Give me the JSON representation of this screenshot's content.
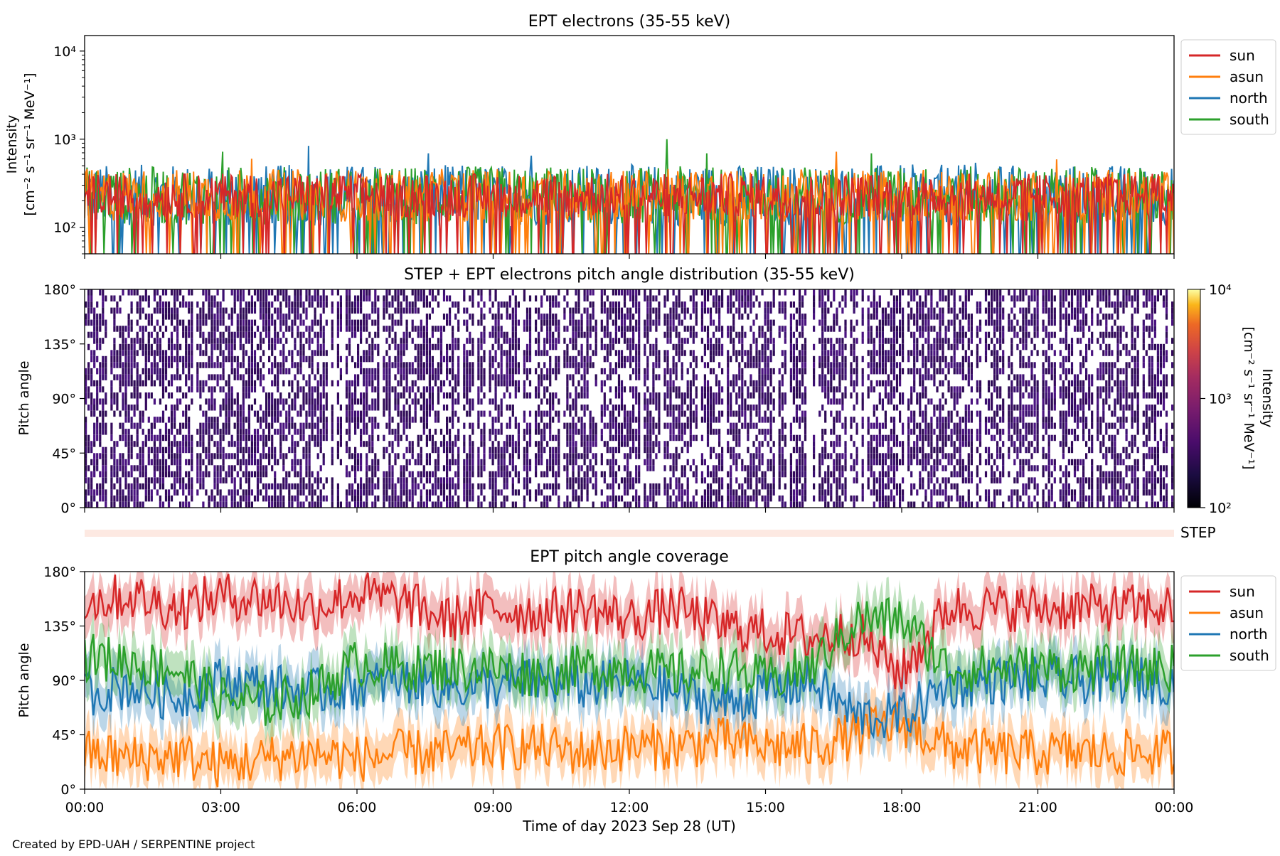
{
  "colors": {
    "sun": "#d62728",
    "asun": "#ff7f0e",
    "north": "#1f77b4",
    "south": "#2ca02c",
    "pitch_fill": "#3b0f70",
    "step_strip": "#fde9e2"
  },
  "footer": "Created by EPD-UAH / SERPENTINE project",
  "chart_data": [
    {
      "type": "line",
      "title": "EPT electrons (35-55 keV)",
      "ylabel_line1": "Intensity",
      "ylabel_line2": "[cm⁻² s⁻¹ sr⁻¹ MeV⁻¹]",
      "yscale": "log",
      "ylim": [
        50,
        15000
      ],
      "yticks": [
        {
          "value": 100,
          "label": "10²"
        },
        {
          "value": 1000,
          "label": "10³"
        },
        {
          "value": 10000,
          "label": "10⁴"
        }
      ],
      "xlim": [
        0,
        24
      ],
      "legend_position": "outside-right",
      "series": [
        {
          "name": "north",
          "color_key": "north",
          "typical": 230,
          "spread": 0.35,
          "peak": [
            [
              "04:56",
              840
            ],
            [
              "07:35",
              690
            ],
            [
              "09:50",
              650
            ],
            [
              "19:37",
              540
            ]
          ]
        },
        {
          "name": "south",
          "color_key": "south",
          "typical": 230,
          "spread": 0.33,
          "peak": [
            [
              "12:50",
              1000
            ],
            [
              "03:02",
              720
            ],
            [
              "17:20",
              690
            ],
            [
              "13:42",
              690
            ]
          ]
        },
        {
          "name": "asun",
          "color_key": "asun",
          "typical": 230,
          "spread": 0.3,
          "peak": [
            [
              "16:34",
              720
            ],
            [
              "21:25",
              590
            ],
            [
              "03:40",
              600
            ]
          ]
        },
        {
          "name": "sun",
          "color_key": "sun",
          "typical": 230,
          "spread": 0.25,
          "peak": []
        }
      ],
      "legend": [
        "sun",
        "asun",
        "north",
        "south"
      ]
    },
    {
      "type": "heatmap",
      "title": "STEP + EPT electrons pitch angle distribution (35-55 keV)",
      "ylabel": "Pitch angle",
      "ylim": [
        0,
        180
      ],
      "yticks": [
        {
          "value": 0,
          "label": "0°"
        },
        {
          "value": 45,
          "label": "45°"
        },
        {
          "value": 90,
          "label": "90°"
        },
        {
          "value": 135,
          "label": "135°"
        },
        {
          "value": 180,
          "label": "180°"
        }
      ],
      "xlim": [
        0,
        24
      ],
      "colorbar": {
        "label_line1": "Intensity",
        "label_line2": "[cm⁻² s⁻¹ sr⁻¹ MeV⁻¹]",
        "scale": "log",
        "range": [
          100,
          10000
        ],
        "ticks": [
          {
            "value": 100,
            "label": "10²"
          },
          {
            "value": 1000,
            "label": "10³"
          },
          {
            "value": 10000,
            "label": "10⁴"
          }
        ]
      }
    },
    {
      "type": "strip",
      "label": "STEP"
    },
    {
      "type": "line",
      "title": "EPT pitch angle coverage",
      "ylabel": "Pitch angle",
      "ylim": [
        0,
        180
      ],
      "yticks": [
        {
          "value": 0,
          "label": "0°"
        },
        {
          "value": 45,
          "label": "45°"
        },
        {
          "value": 90,
          "label": "90°"
        },
        {
          "value": 135,
          "label": "135°"
        },
        {
          "value": 180,
          "label": "180°"
        }
      ],
      "xlim": [
        0,
        24
      ],
      "xticks": [
        {
          "value": 0,
          "label": "00:00"
        },
        {
          "value": 3,
          "label": "03:00"
        },
        {
          "value": 6,
          "label": "06:00"
        },
        {
          "value": 9,
          "label": "09:00"
        },
        {
          "value": 12,
          "label": "12:00"
        },
        {
          "value": 15,
          "label": "15:00"
        },
        {
          "value": 18,
          "label": "18:00"
        },
        {
          "value": 21,
          "label": "21:00"
        },
        {
          "value": 24,
          "label": "00:00"
        }
      ],
      "xlabel": "Time of day 2023 Sep 28 (UT)",
      "legend_position": "outside-right",
      "legend": [
        "sun",
        "asun",
        "north",
        "south"
      ],
      "series": [
        {
          "name": "sun",
          "color_key": "sun",
          "x": [
            0,
            1,
            2,
            3,
            4,
            5,
            6,
            7,
            8,
            9,
            10,
            11,
            12,
            13,
            14,
            15,
            16,
            17,
            18,
            19,
            20,
            21,
            22,
            23,
            24
          ],
          "y": [
            155,
            160,
            150,
            160,
            158,
            150,
            162,
            155,
            140,
            150,
            145,
            150,
            140,
            150,
            135,
            130,
            125,
            130,
            95,
            150,
            150,
            150,
            150,
            150,
            150
          ]
        },
        {
          "name": "asun",
          "color_key": "asun",
          "x": [
            0,
            1,
            2,
            3,
            4,
            5,
            6,
            7,
            8,
            9,
            10,
            11,
            12,
            13,
            14,
            15,
            16,
            17,
            18,
            19,
            20,
            21,
            22,
            23,
            24
          ],
          "y": [
            30,
            25,
            28,
            20,
            25,
            30,
            25,
            30,
            30,
            35,
            35,
            30,
            35,
            35,
            40,
            35,
            35,
            45,
            55,
            35,
            30,
            30,
            30,
            30,
            30
          ]
        },
        {
          "name": "north",
          "color_key": "north",
          "x": [
            0,
            1,
            2,
            3,
            4,
            5,
            6,
            7,
            8,
            9,
            10,
            11,
            12,
            13,
            14,
            15,
            16,
            17,
            18,
            19,
            20,
            21,
            22,
            23,
            24
          ],
          "y": [
            80,
            85,
            75,
            90,
            85,
            80,
            85,
            90,
            85,
            85,
            90,
            85,
            90,
            80,
            70,
            80,
            90,
            60,
            60,
            85,
            90,
            90,
            90,
            90,
            90
          ]
        },
        {
          "name": "south",
          "color_key": "south",
          "x": [
            0,
            1,
            2,
            3,
            4,
            5,
            6,
            7,
            8,
            9,
            10,
            11,
            12,
            13,
            14,
            15,
            16,
            17,
            18,
            19,
            20,
            21,
            22,
            23,
            24
          ],
          "y": [
            110,
            105,
            100,
            75,
            70,
            80,
            105,
            100,
            100,
            100,
            95,
            100,
            100,
            95,
            100,
            90,
            100,
            140,
            140,
            100,
            100,
            100,
            100,
            100,
            100
          ]
        }
      ]
    }
  ]
}
